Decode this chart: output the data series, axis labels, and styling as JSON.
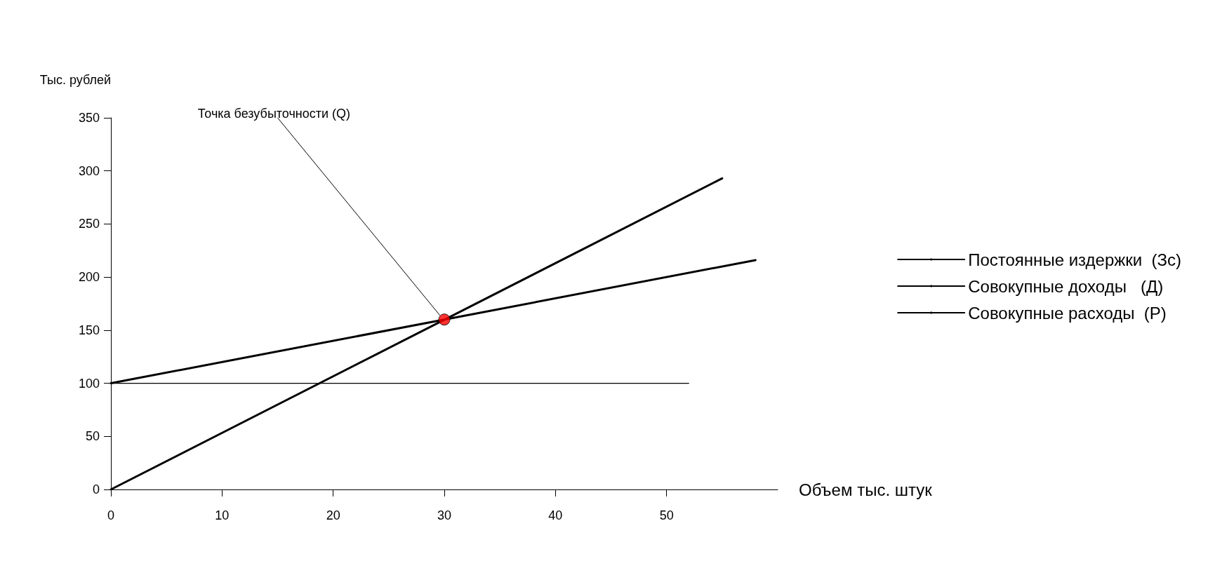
{
  "chart_data": {
    "type": "line",
    "ylabel": "Тыс. рублей",
    "xlabel": "Объем тыс. штук",
    "annotations": [
      {
        "text": "Точка безубыточности (Q)",
        "x": 30,
        "y": 160
      }
    ],
    "xlim": [
      0,
      60
    ],
    "xticks": [
      0,
      10,
      20,
      30,
      40,
      50
    ],
    "ylim": [
      0,
      350
    ],
    "yticks": [
      0,
      50,
      100,
      150,
      200,
      250,
      300,
      350
    ],
    "grid": false,
    "legend": "right",
    "marker": "none",
    "line_style": "solid",
    "series": [
      {
        "name": "Постоянные издержки  (Зс)",
        "color": "#000000",
        "x": [
          0,
          52
        ],
        "values": [
          100,
          100
        ]
      },
      {
        "name": "Совокупные доходы   (Д)",
        "color": "#000000",
        "x": [
          0,
          55
        ],
        "values": [
          0,
          293
        ]
      },
      {
        "name": "Совокупные расходы  (Р)",
        "color": "#000000",
        "x": [
          0,
          58
        ],
        "values": [
          100,
          216
        ]
      },
      {
        "type": "scatter",
        "color": "#ff0000",
        "marker": "circle",
        "x": [
          30
        ],
        "values": [
          160
        ]
      }
    ]
  }
}
